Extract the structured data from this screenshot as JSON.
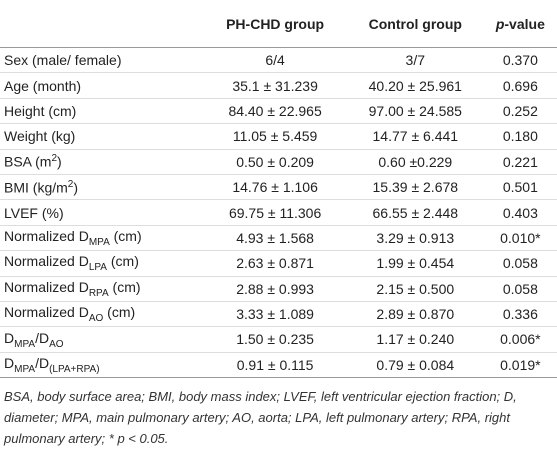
{
  "table": {
    "header": [
      [
        {
          "text": ""
        }
      ],
      [
        {
          "text": "PH-CHD group"
        }
      ],
      [
        {
          "text": "Control group"
        }
      ],
      [
        {
          "italic": "p"
        },
        {
          "text": "-value"
        }
      ]
    ],
    "rows": [
      [
        [
          {
            "text": "Sex (male/ female)"
          }
        ],
        "6/4",
        "3/7",
        "0.370"
      ],
      [
        [
          {
            "text": "Age (month)"
          }
        ],
        "35.1 ± 31.239",
        "40.20 ± 25.961",
        "0.696"
      ],
      [
        [
          {
            "text": "Height (cm)"
          }
        ],
        "84.40 ± 22.965",
        "97.00 ± 24.585",
        "0.252"
      ],
      [
        [
          {
            "text": "Weight (kg)"
          }
        ],
        "11.05 ± 5.459",
        "14.77 ± 6.441",
        "0.180"
      ],
      [
        [
          {
            "text": "BSA (m"
          },
          {
            "sup": "2"
          },
          {
            "text": ")"
          }
        ],
        "0.50 ± 0.209",
        "0.60 ±0.229",
        "0.221"
      ],
      [
        [
          {
            "text": "BMI (kg/m"
          },
          {
            "sup": "2"
          },
          {
            "text": ")"
          }
        ],
        "14.76 ± 1.106",
        "15.39 ± 2.678",
        "0.501"
      ],
      [
        [
          {
            "text": "LVEF (%)"
          }
        ],
        "69.75 ± 11.306",
        "66.55 ± 2.448",
        "0.403"
      ],
      [
        [
          {
            "text": "Normalized D"
          },
          {
            "sub": "MPA"
          },
          {
            "text": " (cm)"
          }
        ],
        "4.93 ± 1.568",
        "3.29 ± 0.913",
        "0.010*"
      ],
      [
        [
          {
            "text": "Normalized D"
          },
          {
            "sub": "LPA"
          },
          {
            "text": " (cm)"
          }
        ],
        "2.63 ± 0.871",
        "1.99 ± 0.454",
        "0.058"
      ],
      [
        [
          {
            "text": "Normalized D"
          },
          {
            "sub": "RPA"
          },
          {
            "text": " (cm)"
          }
        ],
        "2.88 ± 0.993",
        "2.15 ± 0.500",
        "0.058"
      ],
      [
        [
          {
            "text": "Normalized D"
          },
          {
            "sub": "AO"
          },
          {
            "text": " (cm)"
          }
        ],
        "3.33 ± 1.089",
        "2.89 ± 0.870",
        "0.336"
      ],
      [
        [
          {
            "text": "D"
          },
          {
            "sub": "MPA"
          },
          {
            "text": "/D"
          },
          {
            "sub": "AO"
          }
        ],
        "1.50 ± 0.235",
        "1.17 ± 0.240",
        "0.006*"
      ],
      [
        [
          {
            "text": "D"
          },
          {
            "sub": "MPA"
          },
          {
            "text": "/D"
          },
          {
            "sub": "(LPA+RPA)"
          }
        ],
        "0.91 ± 0.115",
        "0.79 ± 0.084",
        "0.019*"
      ]
    ],
    "footnote": [
      {
        "text": "BSA, body surface area; BMI, body mass index; LVEF, left ventricular ejection fraction; D, diameter; MPA, main pulmonary artery; AO, aorta; LPA, left pulmonary artery; RPA, right pulmonary artery; * "
      },
      {
        "italic": "p"
      },
      {
        "text": " < 0.05."
      }
    ]
  }
}
